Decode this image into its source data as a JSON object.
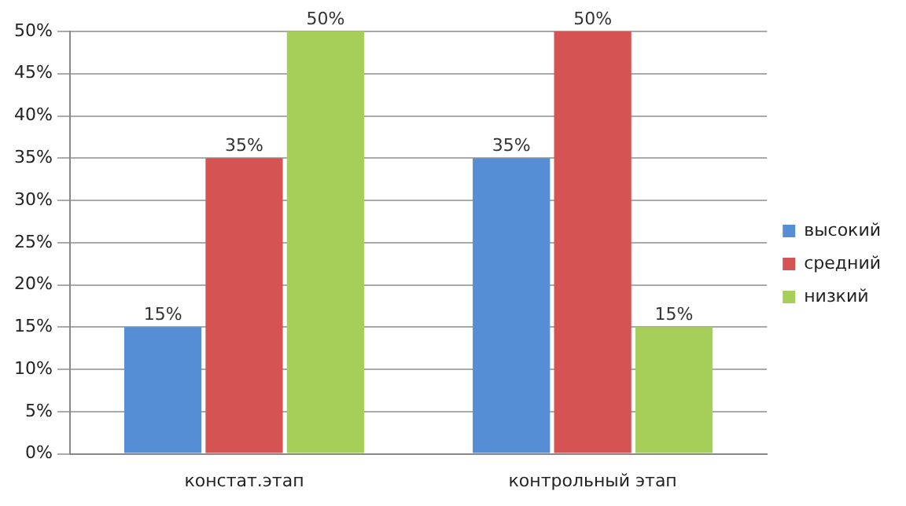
{
  "chart_data": {
    "type": "bar",
    "categories": [
      "констат.этап",
      "контрольный этап"
    ],
    "series": [
      {
        "name": "высокий",
        "color": "#558ed5",
        "values": [
          15,
          35
        ],
        "value_labels": [
          "15%",
          "35%"
        ]
      },
      {
        "name": "средний",
        "color": "#d55353",
        "values": [
          35,
          50
        ],
        "value_labels": [
          "35%",
          "50%"
        ]
      },
      {
        "name": "низкий",
        "color": "#a6cf5a",
        "values": [
          50,
          15
        ],
        "value_labels": [
          "50%",
          "15%"
        ]
      }
    ],
    "ylim": [
      0,
      50
    ],
    "yticks": [
      {
        "value": 0,
        "label": "0%"
      },
      {
        "value": 5,
        "label": "5%"
      },
      {
        "value": 10,
        "label": "10%"
      },
      {
        "value": 15,
        "label": "15%"
      },
      {
        "value": 20,
        "label": "20%"
      },
      {
        "value": 25,
        "label": "25%"
      },
      {
        "value": 30,
        "label": "30%"
      },
      {
        "value": 35,
        "label": "35%"
      },
      {
        "value": 40,
        "label": "40%"
      },
      {
        "value": 45,
        "label": "45%"
      },
      {
        "value": 50,
        "label": "50%"
      }
    ],
    "grid": "y",
    "legend": "right"
  }
}
